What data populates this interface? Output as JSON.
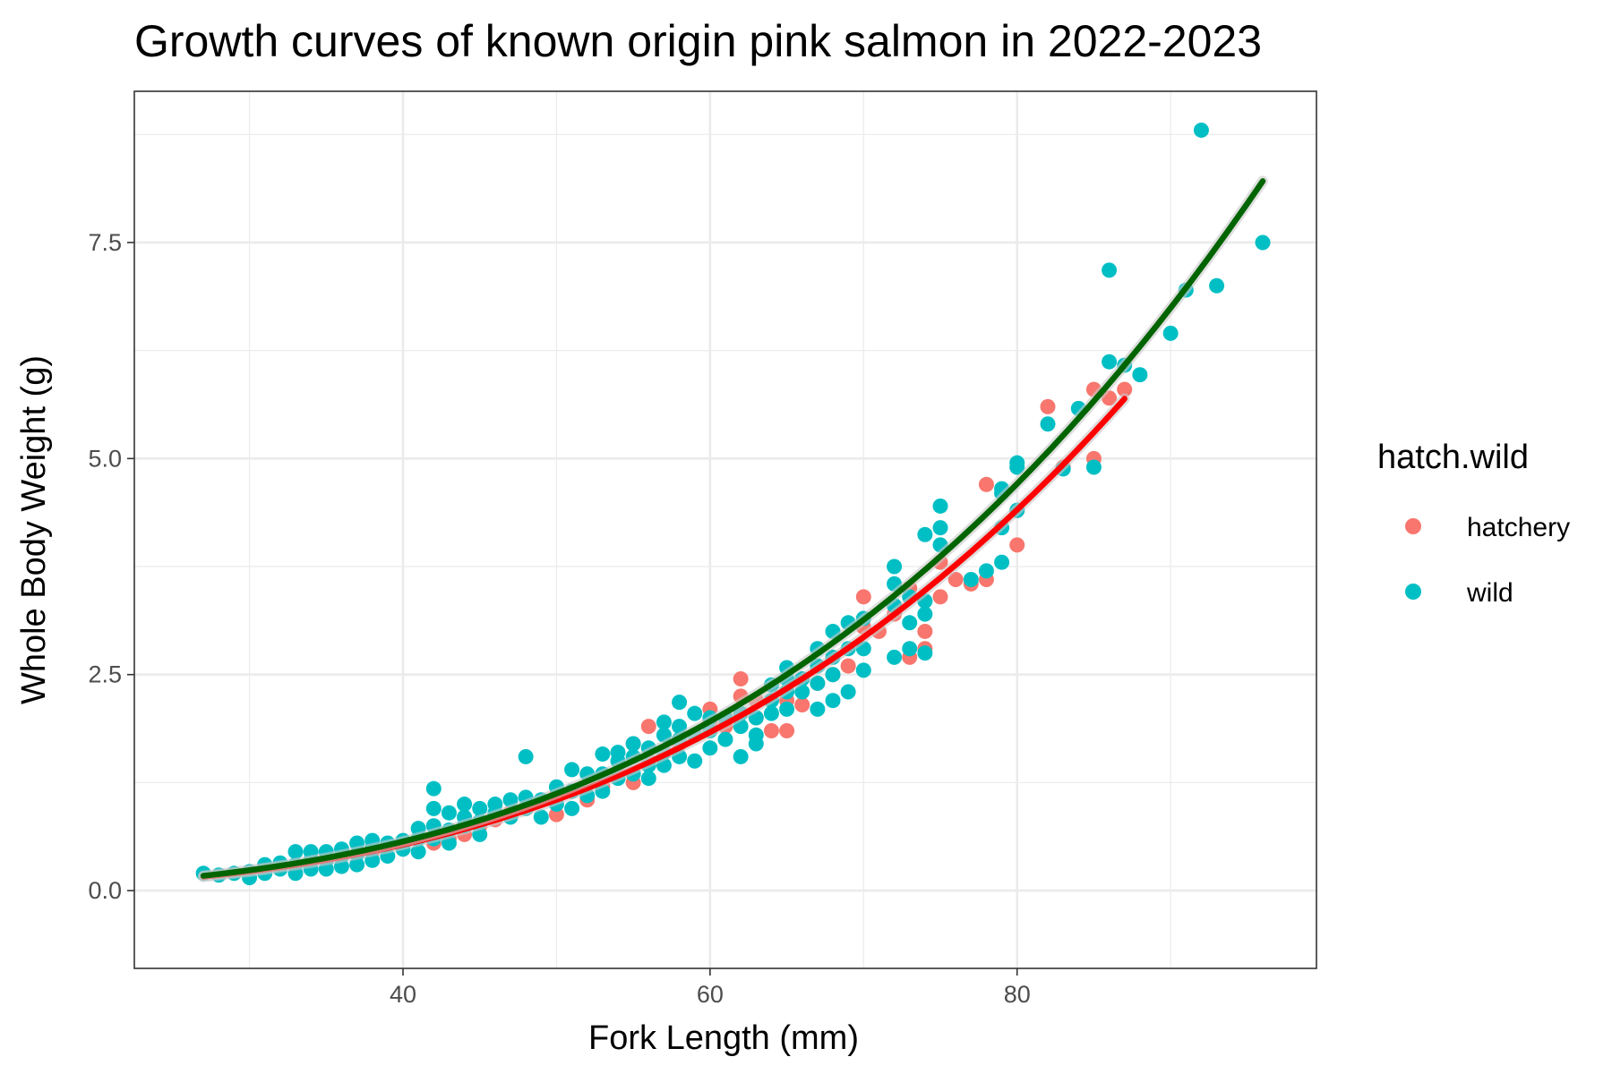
{
  "chart_data": {
    "type": "scatter",
    "title": "Growth curves of known origin pink salmon in 2022-2023",
    "xlabel": "Fork Length (mm)",
    "ylabel": "Whole Body Weight (g)",
    "xlim": [
      22.5,
      99.5
    ],
    "ylim": [
      -0.9,
      9.25
    ],
    "x_ticks": [
      40,
      60,
      80
    ],
    "x_tick_labels": [
      "40",
      "60",
      "80"
    ],
    "y_ticks": [
      0,
      2.5,
      5,
      7.5
    ],
    "y_tick_labels": [
      "0.0",
      "2.5",
      "5.0",
      "7.5"
    ],
    "x_minor": [
      30,
      50,
      70,
      90
    ],
    "y_minor": [
      1.25,
      3.75,
      6.25,
      8.75
    ],
    "grid": true,
    "legend": {
      "title": "hatch.wild",
      "position": "right",
      "entries": [
        {
          "label": "hatchery",
          "color": "#F8766D"
        },
        {
          "label": "wild",
          "color": "#00BFC4"
        }
      ]
    },
    "series": [
      {
        "name": "hatchery",
        "color": "#F8766D",
        "points": [
          [
            38,
            0.45
          ],
          [
            40,
            0.52
          ],
          [
            42,
            0.55
          ],
          [
            43,
            0.6
          ],
          [
            44,
            0.65
          ],
          [
            45,
            0.75
          ],
          [
            46,
            0.82
          ],
          [
            47,
            0.9
          ],
          [
            48,
            0.95
          ],
          [
            50,
            0.88
          ],
          [
            50,
            1.1
          ],
          [
            52,
            1.05
          ],
          [
            53,
            1.2
          ],
          [
            54,
            1.35
          ],
          [
            55,
            1.25
          ],
          [
            55,
            1.7
          ],
          [
            56,
            1.5
          ],
          [
            56,
            1.9
          ],
          [
            57,
            1.6
          ],
          [
            58,
            1.7
          ],
          [
            59,
            1.8
          ],
          [
            60,
            1.95
          ],
          [
            60,
            2.1
          ],
          [
            61,
            1.9
          ],
          [
            62,
            2.45
          ],
          [
            62,
            2.25
          ],
          [
            63,
            2.2
          ],
          [
            63,
            2.0
          ],
          [
            64,
            1.85
          ],
          [
            65,
            1.85
          ],
          [
            65,
            2.2
          ],
          [
            66,
            2.15
          ],
          [
            67,
            2.4
          ],
          [
            68,
            2.5
          ],
          [
            69,
            2.6
          ],
          [
            70,
            3.05
          ],
          [
            70,
            3.4
          ],
          [
            71,
            3.0
          ],
          [
            72,
            3.2
          ],
          [
            73,
            3.5
          ],
          [
            73,
            2.7
          ],
          [
            74,
            3.0
          ],
          [
            74,
            2.8
          ],
          [
            75,
            3.4
          ],
          [
            75,
            3.8
          ],
          [
            76,
            3.6
          ],
          [
            77,
            3.55
          ],
          [
            78,
            4.7
          ],
          [
            78,
            3.6
          ],
          [
            80,
            4.0
          ],
          [
            80,
            4.4
          ],
          [
            82,
            5.6
          ],
          [
            83,
            4.9
          ],
          [
            85,
            5.0
          ],
          [
            85,
            5.8
          ],
          [
            86,
            5.7
          ],
          [
            87,
            5.8
          ]
        ]
      },
      {
        "name": "wild",
        "color": "#00BFC4",
        "points": [
          [
            27,
            0.2
          ],
          [
            28,
            0.18
          ],
          [
            29,
            0.2
          ],
          [
            30,
            0.15
          ],
          [
            30,
            0.22
          ],
          [
            31,
            0.3
          ],
          [
            31,
            0.2
          ],
          [
            32,
            0.25
          ],
          [
            32,
            0.32
          ],
          [
            33,
            0.2
          ],
          [
            33,
            0.3
          ],
          [
            33,
            0.45
          ],
          [
            34,
            0.25
          ],
          [
            34,
            0.35
          ],
          [
            34,
            0.45
          ],
          [
            35,
            0.25
          ],
          [
            35,
            0.35
          ],
          [
            35,
            0.45
          ],
          [
            36,
            0.28
          ],
          [
            36,
            0.4
          ],
          [
            36,
            0.48
          ],
          [
            37,
            0.3
          ],
          [
            37,
            0.42
          ],
          [
            37,
            0.55
          ],
          [
            38,
            0.35
          ],
          [
            38,
            0.5
          ],
          [
            38,
            0.58
          ],
          [
            39,
            0.4
          ],
          [
            39,
            0.55
          ],
          [
            40,
            0.48
          ],
          [
            40,
            0.58
          ],
          [
            41,
            0.45
          ],
          [
            41,
            0.6
          ],
          [
            41,
            0.72
          ],
          [
            42,
            0.6
          ],
          [
            42,
            0.75
          ],
          [
            42,
            0.95
          ],
          [
            42,
            1.18
          ],
          [
            43,
            0.55
          ],
          [
            43,
            0.7
          ],
          [
            43,
            0.9
          ],
          [
            44,
            0.75
          ],
          [
            44,
            0.85
          ],
          [
            44,
            1.0
          ],
          [
            45,
            0.65
          ],
          [
            45,
            0.8
          ],
          [
            45,
            0.95
          ],
          [
            46,
            0.9
          ],
          [
            46,
            1.0
          ],
          [
            47,
            0.85
          ],
          [
            47,
            1.05
          ],
          [
            48,
            0.95
          ],
          [
            48,
            1.08
          ],
          [
            48,
            1.55
          ],
          [
            49,
            0.85
          ],
          [
            49,
            1.05
          ],
          [
            50,
            1.0
          ],
          [
            50,
            1.2
          ],
          [
            51,
            0.95
          ],
          [
            51,
            1.15
          ],
          [
            51,
            1.4
          ],
          [
            52,
            1.1
          ],
          [
            52,
            1.35
          ],
          [
            53,
            1.15
          ],
          [
            53,
            1.35
          ],
          [
            53,
            1.58
          ],
          [
            54,
            1.3
          ],
          [
            54,
            1.5
          ],
          [
            54,
            1.6
          ],
          [
            55,
            1.35
          ],
          [
            55,
            1.55
          ],
          [
            55,
            1.7
          ],
          [
            56,
            1.3
          ],
          [
            56,
            1.45
          ],
          [
            56,
            1.65
          ],
          [
            57,
            1.45
          ],
          [
            57,
            1.6
          ],
          [
            57,
            1.8
          ],
          [
            57,
            1.95
          ],
          [
            58,
            1.55
          ],
          [
            58,
            1.75
          ],
          [
            58,
            1.9
          ],
          [
            58,
            2.18
          ],
          [
            59,
            1.5
          ],
          [
            59,
            1.8
          ],
          [
            59,
            2.05
          ],
          [
            60,
            1.65
          ],
          [
            60,
            1.85
          ],
          [
            60,
            2.0
          ],
          [
            61,
            1.75
          ],
          [
            61,
            2.0
          ],
          [
            62,
            1.55
          ],
          [
            62,
            1.9
          ],
          [
            62,
            2.05
          ],
          [
            63,
            1.7
          ],
          [
            63,
            1.8
          ],
          [
            63,
            2.0
          ],
          [
            64,
            2.05
          ],
          [
            64,
            2.2
          ],
          [
            64,
            2.38
          ],
          [
            65,
            2.1
          ],
          [
            65,
            2.3
          ],
          [
            65,
            2.45
          ],
          [
            65,
            2.58
          ],
          [
            66,
            2.3
          ],
          [
            66,
            2.45
          ],
          [
            67,
            2.1
          ],
          [
            67,
            2.4
          ],
          [
            67,
            2.6
          ],
          [
            67,
            2.8
          ],
          [
            68,
            2.2
          ],
          [
            68,
            2.5
          ],
          [
            68,
            2.7
          ],
          [
            68,
            3.0
          ],
          [
            69,
            2.3
          ],
          [
            69,
            2.8
          ],
          [
            69,
            3.1
          ],
          [
            70,
            2.55
          ],
          [
            70,
            2.8
          ],
          [
            70,
            3.15
          ],
          [
            72,
            2.7
          ],
          [
            72,
            3.3
          ],
          [
            72,
            3.55
          ],
          [
            72,
            3.75
          ],
          [
            73,
            2.8
          ],
          [
            73,
            3.1
          ],
          [
            73,
            3.4
          ],
          [
            74,
            2.75
          ],
          [
            74,
            3.2
          ],
          [
            74,
            3.35
          ],
          [
            74,
            4.12
          ],
          [
            75,
            4.0
          ],
          [
            75,
            4.2
          ],
          [
            75,
            4.45
          ],
          [
            77,
            3.6
          ],
          [
            78,
            3.7
          ],
          [
            79,
            3.8
          ],
          [
            79,
            4.2
          ],
          [
            79,
            4.6
          ],
          [
            79,
            4.65
          ],
          [
            80,
            4.4
          ],
          [
            80,
            4.9
          ],
          [
            80,
            4.95
          ],
          [
            82,
            5.4
          ],
          [
            83,
            4.88
          ],
          [
            84,
            5.58
          ],
          [
            85,
            4.9
          ],
          [
            86,
            6.12
          ],
          [
            86,
            7.18
          ],
          [
            87,
            6.08
          ],
          [
            88,
            5.97
          ],
          [
            90,
            6.45
          ],
          [
            91,
            6.95
          ],
          [
            92,
            8.8
          ],
          [
            93,
            7.0
          ],
          [
            96,
            7.5
          ]
        ]
      }
    ],
    "fit_lines": [
      {
        "name": "hatchery",
        "color": "#FF0000",
        "x_range": [
          27,
          87
        ],
        "a": 6.914e-06,
        "b": 3.05
      },
      {
        "name": "wild",
        "color": "#006400",
        "x_range": [
          27,
          96
        ],
        "a": 7.386e-06,
        "b": 3.05
      }
    ]
  }
}
